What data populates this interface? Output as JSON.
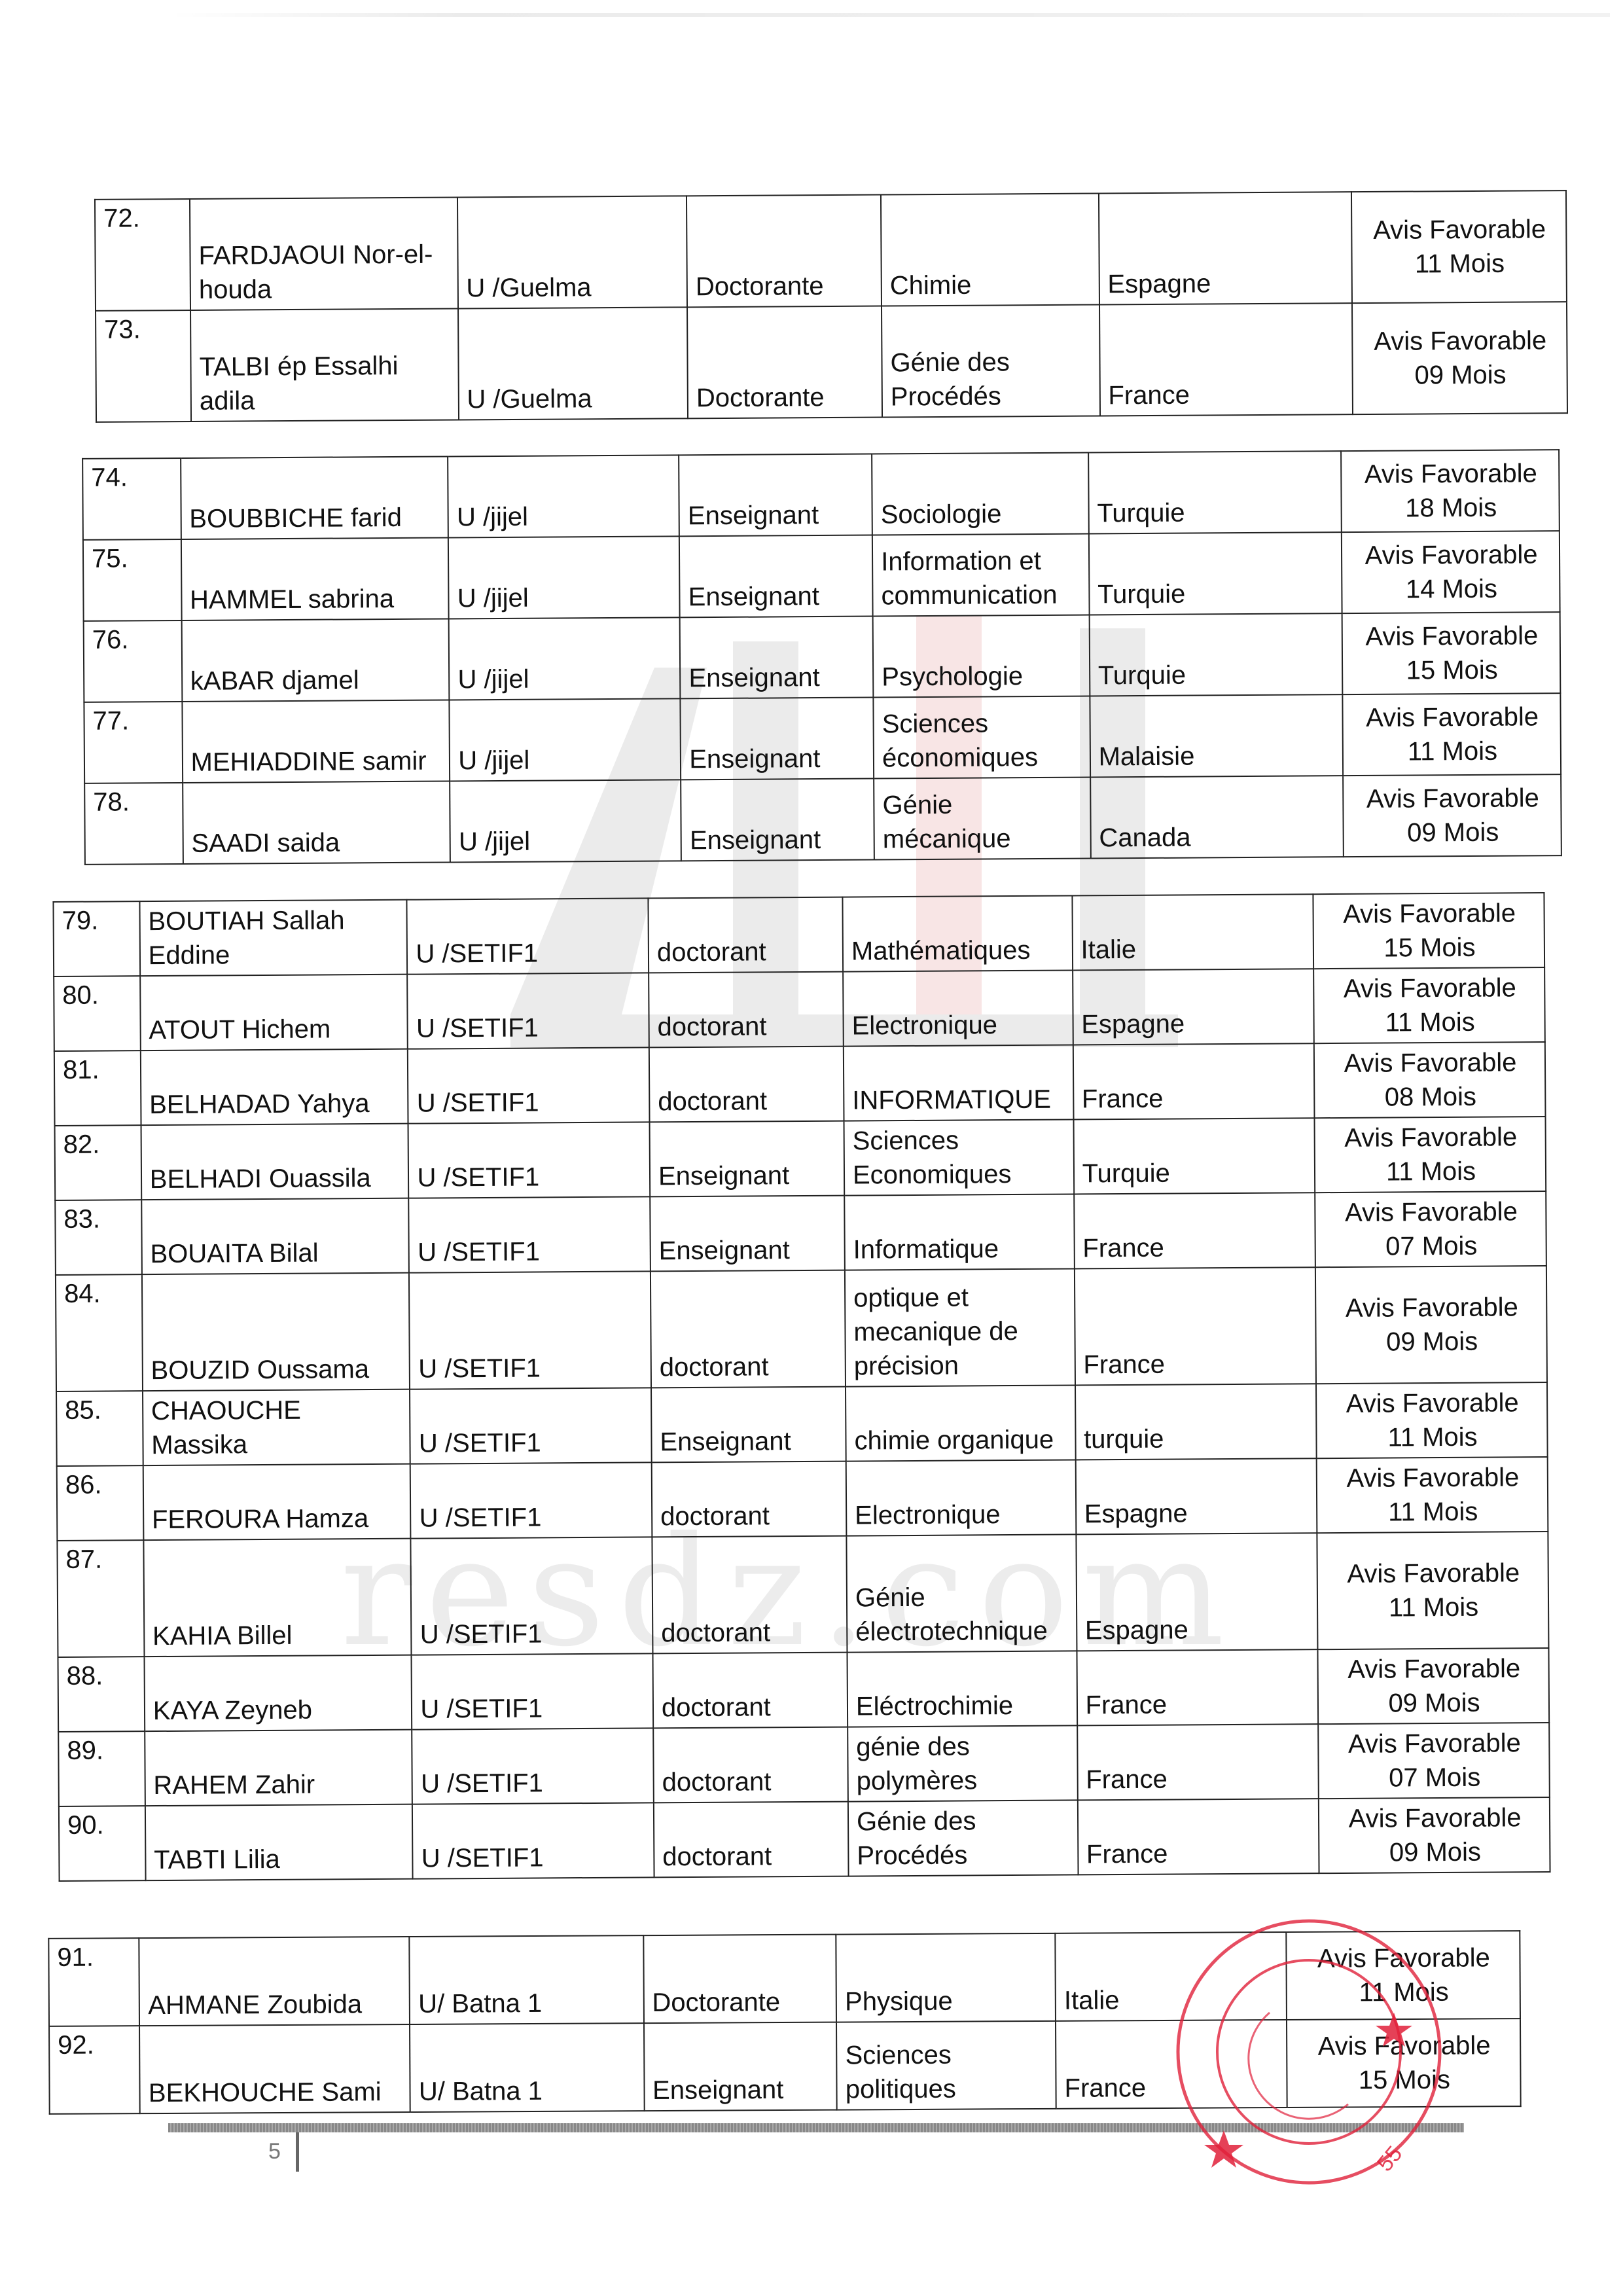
{
  "document": {
    "page_number": "5",
    "watermark_text": "resdz.com",
    "stamp_number": "55",
    "stamp_color": "#e0203a"
  },
  "tables": [
    {
      "rows": [
        {
          "num": "72.",
          "name": "FARDJAOUI Nor-el-houda",
          "univ": "U /Guelma",
          "status": "Doctorante",
          "field": "Chimie",
          "country": "Espagne",
          "avis": "Avis Favorable",
          "duration": "11 Mois"
        },
        {
          "num": "73.",
          "name": "TALBI ép Essalhi adila",
          "univ": "U /Guelma",
          "status": "Doctorante",
          "field": "Génie des Procédés",
          "country": "France",
          "avis": "Avis Favorable",
          "duration": "09 Mois"
        }
      ]
    },
    {
      "rows": [
        {
          "num": "74.",
          "name": "BOUBBICHE farid",
          "univ": "U /jijel",
          "status": "Enseignant",
          "field": "Sociologie",
          "country": "Turquie",
          "avis": "Avis Favorable",
          "duration": "18 Mois"
        },
        {
          "num": "75.",
          "name": "HAMMEL sabrina",
          "univ": "U /jijel",
          "status": "Enseignant",
          "field": "Information et communication",
          "country": "Turquie",
          "avis": "Avis Favorable",
          "duration": "14  Mois"
        },
        {
          "num": "76.",
          "name": "kABAR djamel",
          "univ": "U /jijel",
          "status": "Enseignant",
          "field": "Psychologie",
          "country": "Turquie",
          "avis": "Avis Favorable",
          "duration": "15 Mois"
        },
        {
          "num": "77.",
          "name": "MEHIADDINE samir",
          "univ": "U /jijel",
          "status": "Enseignant",
          "field": "Sciences économiques",
          "country": "Malaisie",
          "avis": "Avis Favorable",
          "duration": "11 Mois"
        },
        {
          "num": "78.",
          "name": "SAADI saida",
          "univ": "U /jijel",
          "status": "Enseignant",
          "field": "Génie mécanique",
          "country": "Canada",
          "avis": "Avis Favorable",
          "duration": "09 Mois"
        }
      ]
    },
    {
      "rows": [
        {
          "num": "79.",
          "name": "BOUTIAH Sallah Eddine",
          "univ": "U /SETIF1",
          "status": "doctorant",
          "field": "Mathématiques",
          "country": "Italie",
          "avis": "Avis Favorable",
          "duration": "15 Mois"
        },
        {
          "num": "80.",
          "name": "ATOUT Hichem",
          "univ": "U /SETIF1",
          "status": "doctorant",
          "field": "Electronique",
          "country": "Espagne",
          "avis": "Avis Favorable",
          "duration": "11 Mois"
        },
        {
          "num": "81.",
          "name": "BELHADAD Yahya",
          "univ": "U /SETIF1",
          "status": "doctorant",
          "field": "INFORMATIQUE",
          "country": "France",
          "avis": "Avis Favorable",
          "duration": "08 Mois"
        },
        {
          "num": "82.",
          "name": "BELHADI Ouassila",
          "univ": "U /SETIF1",
          "status": "Enseignant",
          "field": "Sciences Economiques",
          "country": "Turquie",
          "avis": "Avis Favorable",
          "duration": "11 Mois"
        },
        {
          "num": "83.",
          "name": "BOUAITA Bilal",
          "univ": "U /SETIF1",
          "status": "Enseignant",
          "field": "Informatique",
          "country": "France",
          "avis": "Avis Favorable",
          "duration": "07 Mois"
        },
        {
          "num": "84.",
          "name": "BOUZID Oussama",
          "univ": "U /SETIF1",
          "status": "doctorant",
          "field": "optique et mecanique de précision",
          "country": "France",
          "avis": "Avis Favorable",
          "duration": "09 Mois"
        },
        {
          "num": "85.",
          "name": "CHAOUCHE Massika",
          "univ": "U /SETIF1",
          "status": "Enseignant",
          "field": "chimie organique",
          "country": "turquie",
          "avis": "Avis Favorable",
          "duration": "11 Mois"
        },
        {
          "num": "86.",
          "name": "FEROURA Hamza",
          "univ": "U /SETIF1",
          "status": "doctorant",
          "field": "Electronique",
          "country": "Espagne",
          "avis": "Avis Favorable",
          "duration": "11 Mois"
        },
        {
          "num": "87.",
          "name": "KAHIA Billel",
          "univ": "U /SETIF1",
          "status": "doctorant",
          "field": "Génie électrotechnique",
          "country": "Espagne",
          "avis": "Avis Favorable",
          "duration": "11 Mois"
        },
        {
          "num": "88.",
          "name": "KAYA Zeyneb",
          "univ": "U /SETIF1",
          "status": "doctorant",
          "field": "Eléctrochimie",
          "country": "France",
          "avis": "Avis Favorable",
          "duration": "09 Mois"
        },
        {
          "num": "89.",
          "name": "RAHEM Zahir",
          "univ": "U /SETIF1",
          "status": "doctorant",
          "field": "génie des polymères",
          "country": "France",
          "avis": "Avis Favorable",
          "duration": "07 Mois"
        },
        {
          "num": "90.",
          "name": "TABTI Lilia",
          "univ": "U /SETIF1",
          "status": "doctorant",
          "field": "Génie des Procédés",
          "country": "France",
          "avis": "Avis Favorable",
          "duration": "09 Mois"
        }
      ]
    },
    {
      "rows": [
        {
          "num": "91.",
          "name": "AHMANE Zoubida",
          "univ": "U/ Batna 1",
          "status": "Doctorante",
          "field": "Physique",
          "country": "Italie",
          "avis": "Avis Favorable",
          "duration": "11 Mois"
        },
        {
          "num": "92.",
          "name": "BEKHOUCHE Sami",
          "univ": "U/ Batna 1",
          "status": "Enseignant",
          "field": "Sciences politiques",
          "country": "France",
          "avis": "Avis Favorable",
          "duration": "15 Mois"
        }
      ]
    }
  ]
}
